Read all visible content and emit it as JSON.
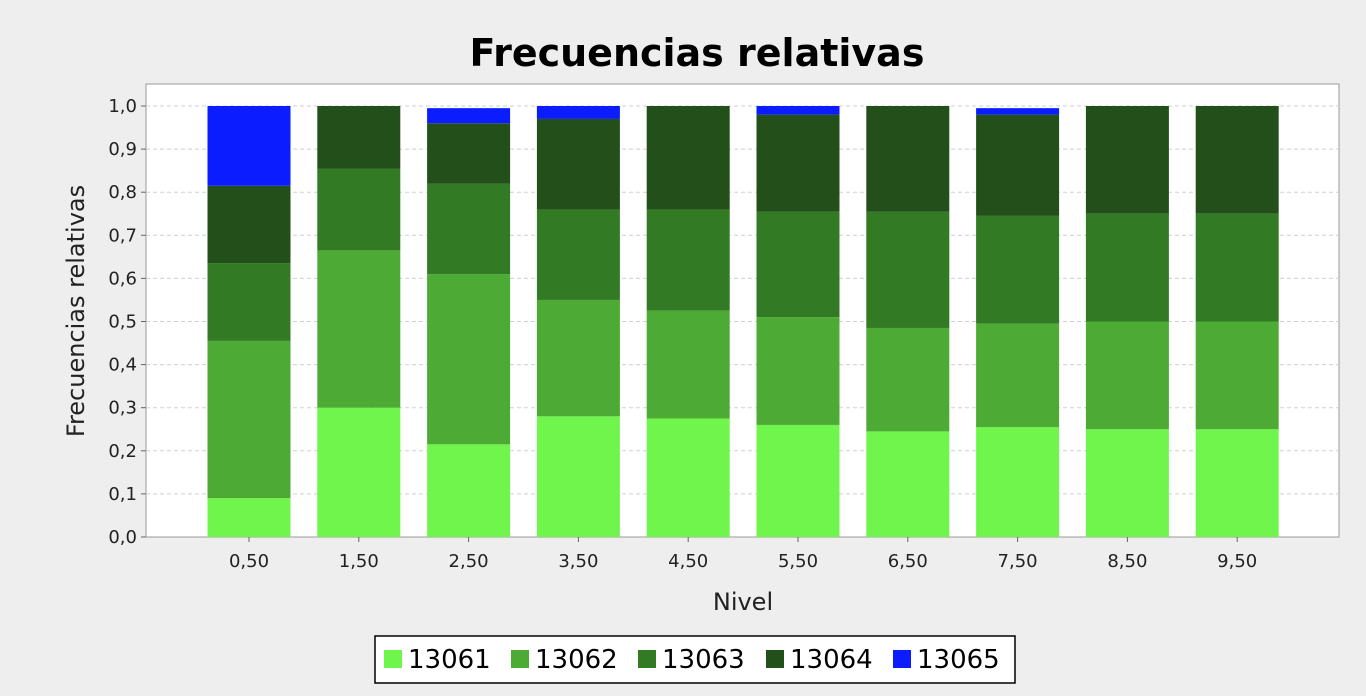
{
  "chart_data": {
    "type": "bar",
    "stacked": true,
    "title": "Frecuencias relativas",
    "xlabel": "Nivel",
    "ylabel": "Frecuencias relativas",
    "ylim": [
      0,
      1.0
    ],
    "yticks": [
      "0,0",
      "0,1",
      "0,2",
      "0,3",
      "0,4",
      "0,5",
      "0,6",
      "0,7",
      "0,8",
      "0,9",
      "1,0"
    ],
    "grid": true,
    "legend_position": "bottom",
    "categories": [
      "0,50",
      "1,50",
      "2,50",
      "3,50",
      "4,50",
      "5,50",
      "6,50",
      "7,50",
      "8,50",
      "9,50"
    ],
    "series": [
      {
        "name": "13061",
        "color": "#70f54d",
        "values": [
          0.09,
          0.3,
          0.215,
          0.28,
          0.275,
          0.26,
          0.245,
          0.255,
          0.25,
          0.25
        ]
      },
      {
        "name": "13062",
        "color": "#4caa35",
        "values": [
          0.365,
          0.365,
          0.395,
          0.27,
          0.25,
          0.25,
          0.24,
          0.24,
          0.25,
          0.25
        ]
      },
      {
        "name": "13063",
        "color": "#337a24",
        "values": [
          0.18,
          0.19,
          0.21,
          0.21,
          0.235,
          0.245,
          0.27,
          0.25,
          0.25,
          0.25
        ]
      },
      {
        "name": "13064",
        "color": "#23501a",
        "values": [
          0.18,
          0.145,
          0.14,
          0.21,
          0.24,
          0.225,
          0.245,
          0.235,
          0.25,
          0.25
        ]
      },
      {
        "name": "13065",
        "color": "#0b1dff",
        "values": [
          0.185,
          0.0,
          0.035,
          0.03,
          0.0,
          0.02,
          0.0,
          0.015,
          0.0,
          0.0
        ]
      }
    ]
  }
}
